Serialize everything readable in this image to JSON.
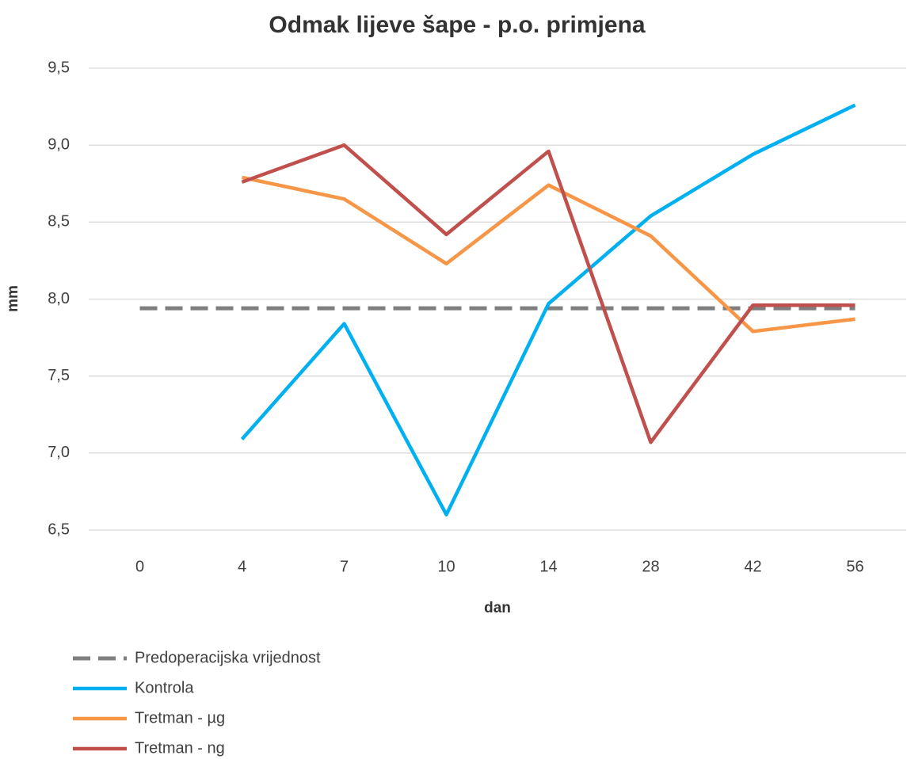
{
  "chart_data": {
    "type": "line",
    "title": "Odmak lijeve šape - p.o. primjena",
    "xlabel": "dan",
    "ylabel": "mm",
    "categories": [
      "0",
      "4",
      "7",
      "10",
      "14",
      "28",
      "42",
      "56"
    ],
    "series": [
      {
        "name": "Predoperacijska vrijednost",
        "color": "#7f7f7f",
        "dashed": true,
        "values": [
          7.94,
          7.94,
          7.94,
          7.94,
          7.94,
          7.94,
          7.94,
          7.94
        ]
      },
      {
        "name": "Kontrola",
        "color": "#00b0f0",
        "values": [
          null,
          7.09,
          7.84,
          6.6,
          7.97,
          8.54,
          8.94,
          9.26
        ]
      },
      {
        "name": "Tretman - µg",
        "color": "#f79646",
        "values": [
          null,
          8.79,
          8.65,
          8.23,
          8.74,
          8.41,
          7.79,
          7.87
        ]
      },
      {
        "name": "Tretman - ng",
        "color": "#c0504d",
        "values": [
          null,
          8.76,
          9.0,
          8.42,
          8.96,
          7.07,
          7.96,
          7.96
        ]
      }
    ],
    "ylim": [
      6.5,
      9.5
    ],
    "yticks": [
      {
        "value": 6.5,
        "label": "6,5"
      },
      {
        "value": 7.0,
        "label": "7,0"
      },
      {
        "value": 7.5,
        "label": "7,5"
      },
      {
        "value": 8.0,
        "label": "8,0"
      },
      {
        "value": 8.5,
        "label": "8,5"
      },
      {
        "value": 9.0,
        "label": "9,0"
      },
      {
        "value": 9.5,
        "label": "9,5"
      }
    ],
    "grid": true,
    "legend": "bottom-left"
  }
}
